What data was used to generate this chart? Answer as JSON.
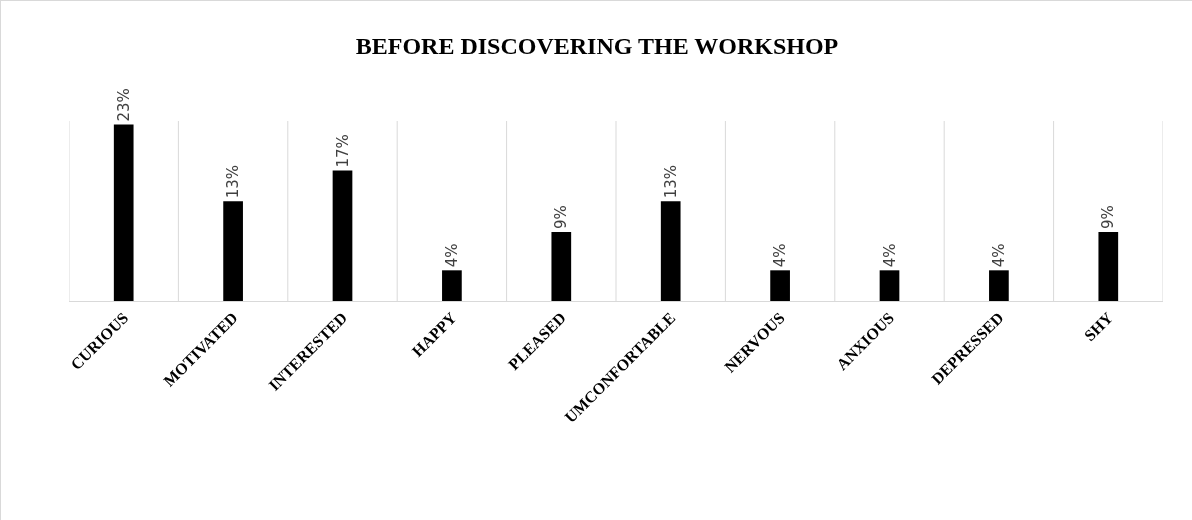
{
  "chart_data": {
    "type": "bar",
    "title": "BEFORE DISCOVERING THE WORKSHOP",
    "categories": [
      "CURIOUS",
      "MOTIVATED",
      "INTERESTED",
      "HAPPY",
      "PLEASED",
      "UMCONFORTABLE",
      "NERVOUS",
      "ANXIOUS",
      "DEPRESSED",
      "SHY"
    ],
    "values": [
      23,
      13,
      17,
      4,
      9,
      13,
      4,
      4,
      4,
      9
    ],
    "value_labels": [
      "23%",
      "13%",
      "17%",
      "4%",
      "9%",
      "13%",
      "4%",
      "4%",
      "4%",
      "9%"
    ],
    "color": "#000000",
    "grid": "x"
  }
}
